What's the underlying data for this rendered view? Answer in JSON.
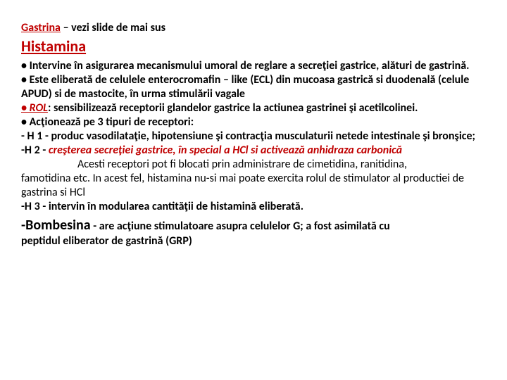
{
  "title1_pre": "Gastrina",
  "title1_post": " – vezi slide de mai sus",
  "title2": "Histamina",
  "p1": "• Intervine în asigurarea mecanismului umoral de reglare a secreţiei gastrice, alături de gastrină.",
  "p2": "• Este eliberată de celulele enterocromafin – like (ECL) din mucoasa gastrică si duodenală (celule APUD) si de mastocite, în urma stimulării vagale",
  "p3_rol": "• ROL",
  "p3_rest": ": sensibilizează receptorii glandelor gastrice la actiunea gastrinei şi acetilcolinei.",
  "p4": "• Acţionează pe 3 tipuri de receptori:",
  "p5": "- H 1 - produc vasodilataţie, hipotensiune şi contracţia musculaturii netede intestinale şi bronşice;",
  "p6_a": "-H 2 - ",
  "p6_b": "creşterea secreţiei gastrice, în special a HCl si activează anhidraza carbonică",
  "p7_a": "Acesti receptori pot fi blocati prin administrare de cimetidina, ranitidina,",
  "p7_b": "famotidina etc. In acest fel, histamina nu-si mai poate exercita rolul de stimulator al productiei de gastrina si HCl",
  "p8": "-H 3 - intervin în modularea cantităţii de histamină eliberată.",
  "bombesina_label": "-Bombesina",
  "bombesina_rest1": " - are acţiune stimulatoare asupra celulelor G; a fost asimilată cu",
  "bombesina_rest2": "peptidul eliberator de gastrină (GRP)",
  "colors": {
    "red": "#c00000",
    "black": "#000000",
    "background": "#ffffff"
  }
}
